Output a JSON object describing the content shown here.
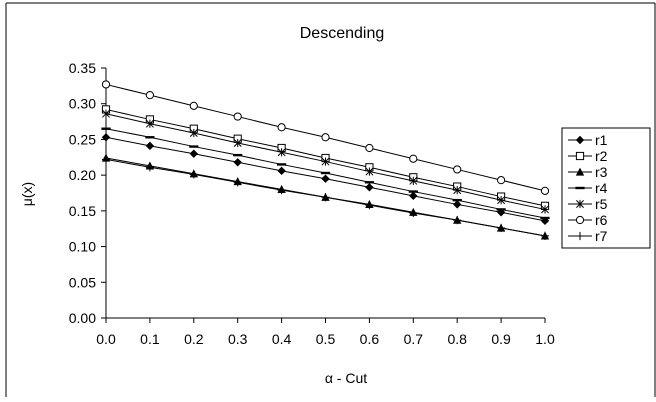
{
  "chart_data": {
    "type": "line",
    "title": "Descending",
    "xlabel": "α - Cut",
    "ylabel": "μ(x)",
    "x": [
      0.0,
      0.1,
      0.2,
      0.3,
      0.4,
      0.5,
      0.6,
      0.7,
      0.8,
      0.9,
      1.0
    ],
    "x_tick_labels": [
      "0.0",
      "0.1",
      "0.2",
      "0.3",
      "0.4",
      "0.5",
      "0.6",
      "0.7",
      "0.8",
      "0.9",
      "1.0"
    ],
    "y_tick_values": [
      0.0,
      0.05,
      0.1,
      0.15,
      0.2,
      0.25,
      0.3,
      0.35
    ],
    "y_tick_labels": [
      "0.00",
      "0.05",
      "0.10",
      "0.15",
      "0.20",
      "0.25",
      "0.30",
      "0.35"
    ],
    "xlim": [
      0.0,
      1.0
    ],
    "ylim": [
      0.0,
      0.35
    ],
    "grid": false,
    "legend_placement": "right",
    "series": [
      {
        "name": "r1",
        "marker": "diamond-filled",
        "color": "#000000",
        "values": [
          0.253,
          0.241,
          0.23,
          0.218,
          0.206,
          0.195,
          0.183,
          0.171,
          0.159,
          0.148,
          0.136
        ]
      },
      {
        "name": "r2",
        "marker": "square-open",
        "color": "#000000",
        "values": [
          0.292,
          0.278,
          0.265,
          0.251,
          0.238,
          0.224,
          0.211,
          0.197,
          0.184,
          0.17,
          0.157
        ]
      },
      {
        "name": "r3",
        "marker": "triangle-filled",
        "color": "#000000",
        "values": [
          0.224,
          0.213,
          0.202,
          0.191,
          0.18,
          0.169,
          0.159,
          0.148,
          0.137,
          0.126,
          0.115
        ]
      },
      {
        "name": "r4",
        "marker": "dash",
        "color": "#000000",
        "values": [
          0.265,
          0.253,
          0.24,
          0.228,
          0.215,
          0.203,
          0.19,
          0.177,
          0.165,
          0.152,
          0.14
        ]
      },
      {
        "name": "r5",
        "marker": "star",
        "color": "#000000",
        "values": [
          0.286,
          0.272,
          0.259,
          0.245,
          0.232,
          0.219,
          0.205,
          0.192,
          0.179,
          0.165,
          0.152
        ]
      },
      {
        "name": "r6",
        "marker": "circle-open",
        "color": "#000000",
        "values": [
          0.327,
          0.312,
          0.297,
          0.282,
          0.267,
          0.253,
          0.238,
          0.223,
          0.208,
          0.193,
          0.178
        ]
      },
      {
        "name": "r7",
        "marker": "plus",
        "color": "#000000",
        "values": [
          0.222,
          0.211,
          0.201,
          0.19,
          0.179,
          0.169,
          0.158,
          0.147,
          0.137,
          0.126,
          0.115
        ]
      }
    ]
  }
}
